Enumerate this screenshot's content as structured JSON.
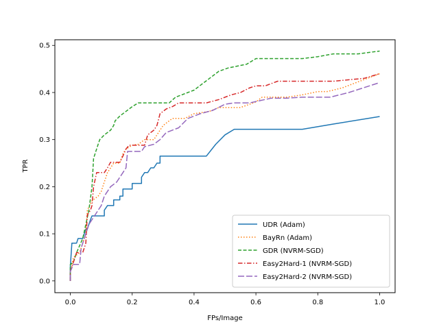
{
  "chart_data": {
    "type": "line",
    "title": "",
    "xlabel": "FPs/Image",
    "ylabel": "TPR",
    "xlim": [
      -0.05,
      1.05
    ],
    "ylim": [
      -0.025,
      0.512
    ],
    "xticks": [
      0.0,
      0.2,
      0.4,
      0.6,
      0.8,
      1.0
    ],
    "xtick_labels": [
      "0.0",
      "0.2",
      "0.4",
      "0.6",
      "0.8",
      "1.0"
    ],
    "yticks": [
      0.0,
      0.1,
      0.2,
      0.3,
      0.4,
      0.5
    ],
    "ytick_labels": [
      "0.0",
      "0.1",
      "0.2",
      "0.3",
      "0.4",
      "0.5"
    ],
    "grid": false,
    "legend_position": "lower-right",
    "series": [
      {
        "name": "UDR (Adam)",
        "color": "#1f77b4",
        "style": "solid",
        "points": [
          [
            0,
            0
          ],
          [
            0,
            0.03
          ],
          [
            0.005,
            0.08
          ],
          [
            0.02,
            0.08
          ],
          [
            0.025,
            0.09
          ],
          [
            0.04,
            0.09
          ],
          [
            0.045,
            0.1
          ],
          [
            0.05,
            0.11
          ],
          [
            0.055,
            0.11
          ],
          [
            0.06,
            0.12
          ],
          [
            0.065,
            0.13
          ],
          [
            0.07,
            0.138
          ],
          [
            0.11,
            0.138
          ],
          [
            0.11,
            0.15
          ],
          [
            0.12,
            0.16
          ],
          [
            0.14,
            0.16
          ],
          [
            0.14,
            0.172
          ],
          [
            0.16,
            0.172
          ],
          [
            0.16,
            0.18
          ],
          [
            0.17,
            0.18
          ],
          [
            0.17,
            0.195
          ],
          [
            0.2,
            0.195
          ],
          [
            0.2,
            0.207
          ],
          [
            0.23,
            0.207
          ],
          [
            0.23,
            0.22
          ],
          [
            0.24,
            0.23
          ],
          [
            0.25,
            0.23
          ],
          [
            0.26,
            0.24
          ],
          [
            0.27,
            0.24
          ],
          [
            0.28,
            0.25
          ],
          [
            0.29,
            0.25
          ],
          [
            0.29,
            0.265
          ],
          [
            0.44,
            0.265
          ],
          [
            0.47,
            0.29
          ],
          [
            0.5,
            0.31
          ],
          [
            0.53,
            0.322
          ],
          [
            0.75,
            0.322
          ],
          [
            0.85,
            0.333
          ],
          [
            1.0,
            0.349
          ]
        ]
      },
      {
        "name": "BayRn (Adam)",
        "color": "#ff7f0e",
        "style": "dotted",
        "points": [
          [
            0,
            0
          ],
          [
            0,
            0.02
          ],
          [
            0.01,
            0.05
          ],
          [
            0.03,
            0.06
          ],
          [
            0.05,
            0.1
          ],
          [
            0.055,
            0.15
          ],
          [
            0.07,
            0.17
          ],
          [
            0.09,
            0.18
          ],
          [
            0.1,
            0.19
          ],
          [
            0.11,
            0.21
          ],
          [
            0.12,
            0.23
          ],
          [
            0.14,
            0.25
          ],
          [
            0.16,
            0.25
          ],
          [
            0.17,
            0.27
          ],
          [
            0.18,
            0.28
          ],
          [
            0.2,
            0.288
          ],
          [
            0.22,
            0.29
          ],
          [
            0.24,
            0.3
          ],
          [
            0.27,
            0.3
          ],
          [
            0.28,
            0.31
          ],
          [
            0.3,
            0.33
          ],
          [
            0.33,
            0.345
          ],
          [
            0.37,
            0.345
          ],
          [
            0.4,
            0.355
          ],
          [
            0.45,
            0.36
          ],
          [
            0.48,
            0.368
          ],
          [
            0.55,
            0.368
          ],
          [
            0.6,
            0.38
          ],
          [
            0.62,
            0.39
          ],
          [
            0.7,
            0.39
          ],
          [
            0.75,
            0.395
          ],
          [
            0.8,
            0.402
          ],
          [
            0.83,
            0.402
          ],
          [
            0.88,
            0.41
          ],
          [
            0.92,
            0.42
          ],
          [
            1.0,
            0.44
          ]
        ]
      },
      {
        "name": "GDR (NVRM-SGD)",
        "color": "#2ca02c",
        "style": "dashed",
        "points": [
          [
            0,
            0
          ],
          [
            0,
            0.035
          ],
          [
            0.01,
            0.04
          ],
          [
            0.02,
            0.06
          ],
          [
            0.04,
            0.09
          ],
          [
            0.05,
            0.12
          ],
          [
            0.06,
            0.15
          ],
          [
            0.07,
            0.2
          ],
          [
            0.075,
            0.26
          ],
          [
            0.08,
            0.27
          ],
          [
            0.09,
            0.29
          ],
          [
            0.095,
            0.3
          ],
          [
            0.11,
            0.31
          ],
          [
            0.12,
            0.315
          ],
          [
            0.13,
            0.32
          ],
          [
            0.14,
            0.33
          ],
          [
            0.145,
            0.34
          ],
          [
            0.16,
            0.35
          ],
          [
            0.2,
            0.37
          ],
          [
            0.22,
            0.378
          ],
          [
            0.32,
            0.378
          ],
          [
            0.34,
            0.39
          ],
          [
            0.36,
            0.395
          ],
          [
            0.4,
            0.405
          ],
          [
            0.45,
            0.43
          ],
          [
            0.48,
            0.445
          ],
          [
            0.51,
            0.452
          ],
          [
            0.57,
            0.46
          ],
          [
            0.6,
            0.472
          ],
          [
            0.7,
            0.472
          ],
          [
            0.75,
            0.472
          ],
          [
            0.8,
            0.476
          ],
          [
            0.85,
            0.482
          ],
          [
            0.93,
            0.482
          ],
          [
            1.0,
            0.488
          ]
        ]
      },
      {
        "name": "Easy2Hard-1 (NVRM-SGD)",
        "color": "#d62728",
        "style": "dashdot",
        "points": [
          [
            0,
            0
          ],
          [
            0,
            0.02
          ],
          [
            0.01,
            0.04
          ],
          [
            0.02,
            0.06
          ],
          [
            0.04,
            0.06
          ],
          [
            0.05,
            0.08
          ],
          [
            0.055,
            0.14
          ],
          [
            0.065,
            0.15
          ],
          [
            0.07,
            0.16
          ],
          [
            0.075,
            0.2
          ],
          [
            0.085,
            0.23
          ],
          [
            0.11,
            0.23
          ],
          [
            0.12,
            0.24
          ],
          [
            0.13,
            0.252
          ],
          [
            0.16,
            0.252
          ],
          [
            0.17,
            0.265
          ],
          [
            0.18,
            0.28
          ],
          [
            0.19,
            0.288
          ],
          [
            0.24,
            0.288
          ],
          [
            0.25,
            0.31
          ],
          [
            0.27,
            0.32
          ],
          [
            0.28,
            0.33
          ],
          [
            0.29,
            0.355
          ],
          [
            0.31,
            0.365
          ],
          [
            0.33,
            0.37
          ],
          [
            0.35,
            0.378
          ],
          [
            0.44,
            0.378
          ],
          [
            0.48,
            0.385
          ],
          [
            0.52,
            0.395
          ],
          [
            0.55,
            0.4
          ],
          [
            0.58,
            0.41
          ],
          [
            0.6,
            0.414
          ],
          [
            0.63,
            0.414
          ],
          [
            0.67,
            0.424
          ],
          [
            0.85,
            0.424
          ],
          [
            0.95,
            0.43
          ],
          [
            1.0,
            0.44
          ]
        ]
      },
      {
        "name": "Easy2Hard-2 (NVRM-SGD)",
        "color": "#9467bd",
        "style": "longdash",
        "points": [
          [
            0,
            0
          ],
          [
            0,
            0.02
          ],
          [
            0.01,
            0.035
          ],
          [
            0.03,
            0.035
          ],
          [
            0.035,
            0.07
          ],
          [
            0.05,
            0.1
          ],
          [
            0.06,
            0.12
          ],
          [
            0.07,
            0.13
          ],
          [
            0.08,
            0.14
          ],
          [
            0.09,
            0.15
          ],
          [
            0.1,
            0.16
          ],
          [
            0.11,
            0.18
          ],
          [
            0.13,
            0.2
          ],
          [
            0.15,
            0.21
          ],
          [
            0.17,
            0.23
          ],
          [
            0.18,
            0.24
          ],
          [
            0.185,
            0.275
          ],
          [
            0.23,
            0.275
          ],
          [
            0.24,
            0.285
          ],
          [
            0.27,
            0.29
          ],
          [
            0.29,
            0.3
          ],
          [
            0.31,
            0.315
          ],
          [
            0.33,
            0.32
          ],
          [
            0.35,
            0.325
          ],
          [
            0.38,
            0.345
          ],
          [
            0.42,
            0.355
          ],
          [
            0.46,
            0.362
          ],
          [
            0.5,
            0.375
          ],
          [
            0.53,
            0.378
          ],
          [
            0.58,
            0.378
          ],
          [
            0.65,
            0.388
          ],
          [
            0.7,
            0.388
          ],
          [
            0.75,
            0.39
          ],
          [
            0.84,
            0.39
          ],
          [
            0.9,
            0.4
          ],
          [
            1.0,
            0.421
          ]
        ]
      }
    ]
  }
}
